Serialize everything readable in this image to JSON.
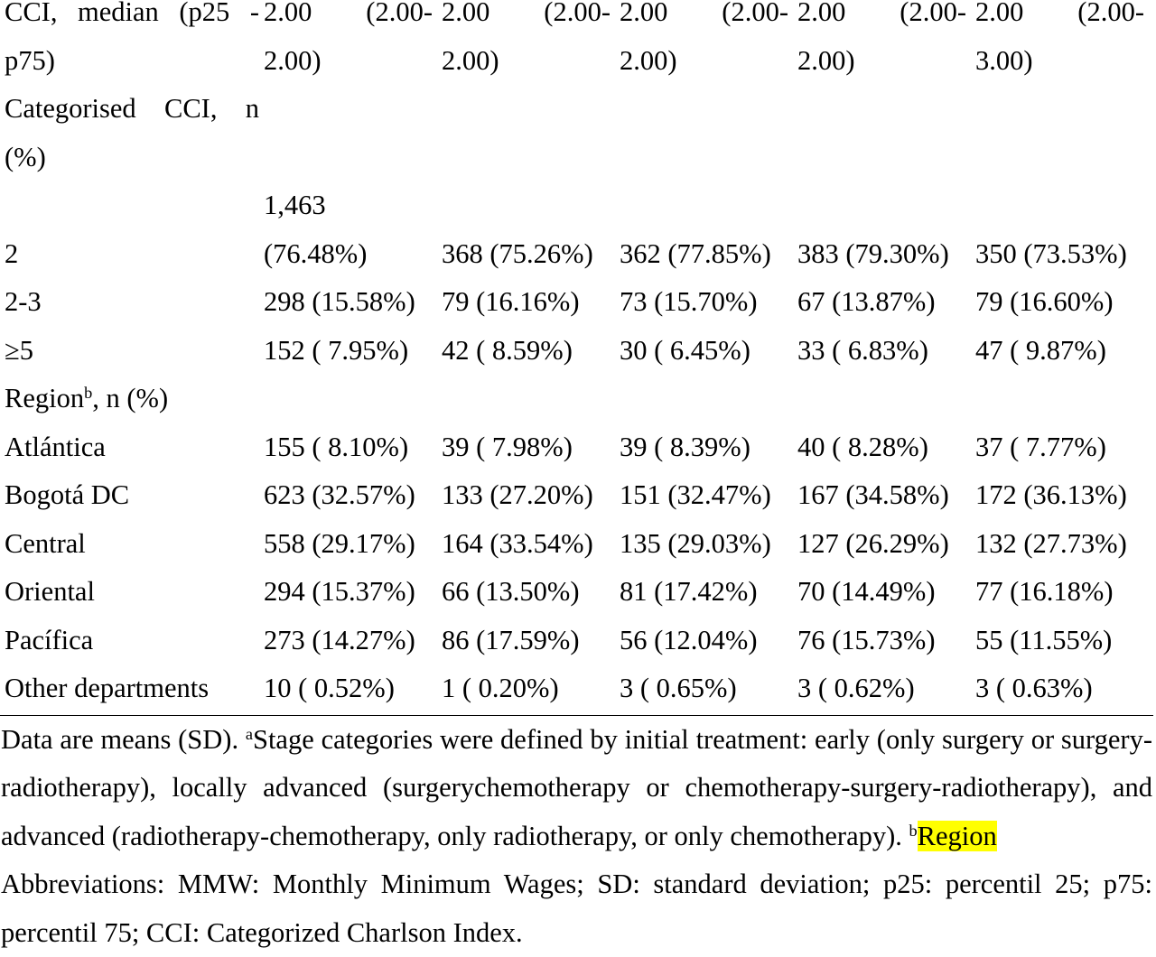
{
  "table": {
    "rows": [
      {
        "label": "CCI, median (p25 - p75)",
        "cells": [
          "2.00 (2.00-2.00)",
          "2.00 (2.00-2.00)",
          "2.00 (2.00-2.00)",
          "2.00 (2.00-2.00)",
          "2.00 (2.00-3.00)"
        ]
      },
      {
        "label": "Categorised CCI, n (%)"
      },
      {
        "label": "2",
        "cells": [
          "1,463 (76.48%)",
          "368 (75.26%)",
          "362 (77.85%)",
          "383 (79.30%)",
          "350 (73.53%)"
        ]
      },
      {
        "label": "2-3",
        "cells": [
          "298 (15.58%)",
          "79 (16.16%)",
          "73 (15.70%)",
          "67 (13.87%)",
          "79 (16.60%)"
        ]
      },
      {
        "label": "≥5",
        "cells": [
          "152 ( 7.95%)",
          "42 ( 8.59%)",
          "30 ( 6.45%)",
          "33 ( 6.83%)",
          "47 ( 9.87%)"
        ]
      },
      {
        "label": "Region",
        "label_sup": "b",
        "label_rest": ", n (%)"
      },
      {
        "label": "Atlántica",
        "cells": [
          "155 ( 8.10%)",
          "39 ( 7.98%)",
          "39 ( 8.39%)",
          "40 ( 8.28%)",
          "37 ( 7.77%)"
        ]
      },
      {
        "label": "Bogotá DC",
        "cells": [
          "623 (32.57%)",
          "133 (27.20%)",
          "151 (32.47%)",
          "167 (34.58%)",
          "172 (36.13%)"
        ]
      },
      {
        "label": "Central",
        "cells": [
          "558 (29.17%)",
          "164 (33.54%)",
          "135 (29.03%)",
          "127 (26.29%)",
          "132 (27.73%)"
        ]
      },
      {
        "label": "Oriental",
        "cells": [
          "294 (15.37%)",
          "66 (13.50%)",
          "81 (17.42%)",
          "70 (14.49%)",
          "77 (16.18%)"
        ]
      },
      {
        "label": "Pacífica",
        "cells": [
          "273 (14.27%)",
          "86 (17.59%)",
          "56 (12.04%)",
          "76 (15.73%)",
          "55 (11.55%)"
        ]
      },
      {
        "label": "Other departments",
        "cells": [
          "10 ( 0.52%)",
          "1 ( 0.20%)",
          "3 ( 0.65%)",
          "3 ( 0.62%)",
          "3 ( 0.63%)"
        ]
      }
    ]
  },
  "footnote": {
    "intro": "Data are means (SD). ",
    "sup_a": "a",
    "stage_note": "Stage categories were defined by initial treatment: early (only surgery or surgery-radiotherapy), locally advanced (surgerychemotherapy or chemotherapy-surgery-radiotherapy), and advanced (radiotherapy-chemotherapy, only radiotherapy, or only chemotherapy). ",
    "sup_b": "b",
    "region_note": "Region",
    "abbreviations": "Abbreviations: MMW: Monthly Minimum Wages; SD: standard deviation; p25: percentil 25; p75: percentil 75; CCI: Categorized Charlson Index."
  }
}
